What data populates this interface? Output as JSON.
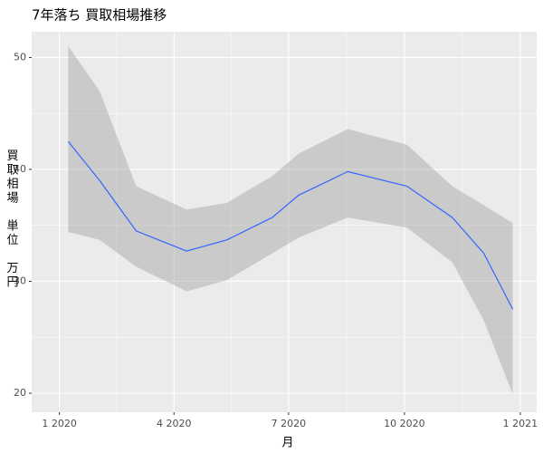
{
  "chart_data": {
    "type": "smooth",
    "title": "7年落ち 買取相場推移",
    "xlabel": "月",
    "ylabel": "買取相場 単位 万円",
    "x": [
      "2020-01-08",
      "2020-02-02",
      "2020-03-02",
      "2020-04-11",
      "2020-05-13",
      "2020-06-18",
      "2020-07-09",
      "2020-08-17",
      "2020-10-03",
      "2020-11-08",
      "2020-12-03",
      "2020-12-26"
    ],
    "values": [
      42.5,
      39.0,
      34.5,
      32.7,
      33.7,
      35.7,
      37.7,
      39.8,
      38.5,
      35.7,
      32.5,
      27.5
    ],
    "lower": [
      34.4,
      33.7,
      31.3,
      29.1,
      30.1,
      32.5,
      33.9,
      35.7,
      34.8,
      31.7,
      26.5,
      19.9
    ],
    "upper": [
      51.0,
      47.0,
      38.5,
      36.4,
      37.0,
      39.4,
      41.4,
      43.6,
      42.2,
      38.5,
      36.8,
      35.2
    ],
    "color": "#3366ff",
    "band_color": "#999999",
    "xlim": [
      "2019-12-10",
      "2021-01-14"
    ],
    "xticks": [
      {
        "value": "2020-01-01",
        "label": "1 2020"
      },
      {
        "value": "2020-04-01",
        "label": "4 2020"
      },
      {
        "value": "2020-07-01",
        "label": "7 2020"
      },
      {
        "value": "2020-10-01",
        "label": "10 2020"
      },
      {
        "value": "2021-01-01",
        "label": "1 2021"
      }
    ],
    "ylim": [
      18.3,
      52.3
    ],
    "yticks": [
      20,
      30,
      40,
      50
    ],
    "grid": true
  }
}
